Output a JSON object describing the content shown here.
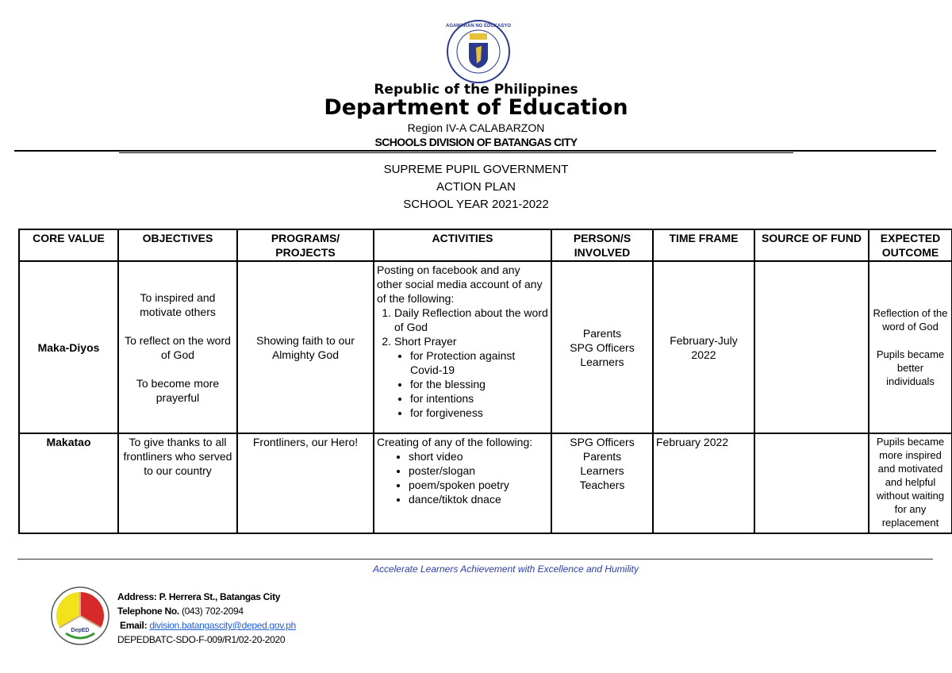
{
  "header": {
    "seal_text": "KAGAWARAN NG EDUKASYON",
    "republic": "Republic of the Philippines",
    "department": "Department of Education",
    "region": "Region IV-A CALABARZON",
    "division": "SCHOOLS DIVISION OF BATANGAS CITY"
  },
  "titles": [
    "SUPREME PUPIL GOVERNMENT",
    "ACTION PLAN",
    "SCHOOL YEAR 2021-2022"
  ],
  "table": {
    "headers": [
      "CORE VALUE",
      "OBJECTIVES",
      "PROGRAMS/ PROJECTS",
      "ACTIVITIES",
      "PERSON/S INVOLVED",
      "TIME FRAME",
      "SOURCE OF FUND",
      "EXPECTED OUTCOME"
    ],
    "rows": [
      {
        "core_value": "Maka-Diyos",
        "objectives": [
          "To inspired and motivate others",
          "To reflect on the word of God",
          "To become more prayerful"
        ],
        "program": "Showing faith to our Almighty God",
        "activities_intro": "Posting on facebook and any other social media account of any of the following:",
        "activities_numbered": [
          "Daily Reflection about the word of God",
          "Short Prayer"
        ],
        "activities_bullets": [
          "for Protection against Covid-19",
          "for the blessing",
          "for intentions",
          "for forgiveness"
        ],
        "persons": [
          "Parents",
          "SPG Officers",
          "Learners"
        ],
        "time_frame": "February-July 2022",
        "source_of_fund": "",
        "outcome": [
          "Reflection of the word of God",
          "Pupils became better individuals"
        ]
      },
      {
        "core_value": "Makatao",
        "objectives": [
          "To give thanks to all frontliners who served to our country"
        ],
        "program": "Frontliners, our Hero!",
        "activities_intro": "Creating of any of the following:",
        "activities_bullets": [
          "short video",
          "poster/slogan",
          "poem/spoken poetry",
          "dance/tiktok dnace"
        ],
        "persons": [
          "SPG Officers",
          "Parents",
          "Learners",
          "Teachers"
        ],
        "time_frame": "February 2022",
        "source_of_fund": "",
        "outcome": [
          "Pupils became more inspired and motivated and helpful without waiting for any replacement"
        ]
      }
    ]
  },
  "footer": {
    "motto": "Accelerate Learners Achievement with Excellence and Humility",
    "address_label": "Address:",
    "address": "P. Herrera St., Batangas City",
    "telephone_label": "Telephone No.",
    "telephone": "(043) 702-2094",
    "email_label": "Email:",
    "email": "division.batangascity@deped.gov.ph",
    "form_code": "DEPEDBATC-SDO-F-009/R1/02-20-2020",
    "logo_text": "DepED"
  },
  "colors": {
    "motto": "#2a3fa8",
    "link": "#1f5fd6",
    "seal_blue": "#2b3a8f",
    "logo_yellow": "#f2e21a",
    "logo_red": "#d62a2a"
  }
}
